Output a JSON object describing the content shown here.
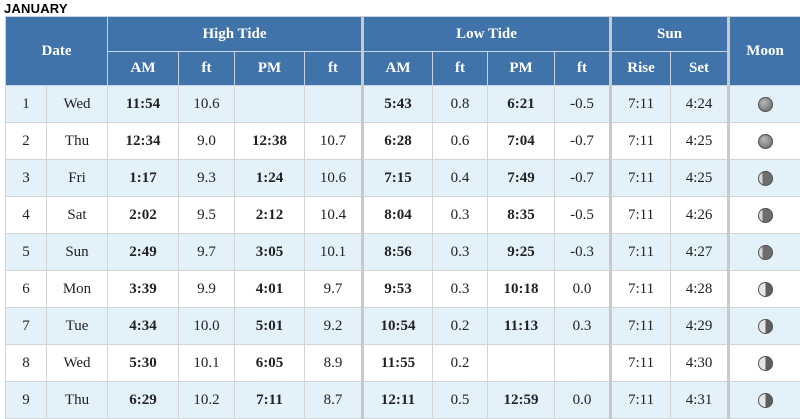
{
  "month": "JANUARY",
  "headers": {
    "date": "Date",
    "high_tide": "High Tide",
    "low_tide": "Low Tide",
    "sun": "Sun",
    "moon": "Moon",
    "am": "AM",
    "ft": "ft",
    "pm": "PM",
    "rise": "Rise",
    "set": "Set"
  },
  "rows": [
    {
      "day": "1",
      "dow": "Wed",
      "high_am": "11:54",
      "high_am_ft": "10.6",
      "high_pm": "",
      "high_pm_ft": "",
      "low_am": "5:43",
      "low_am_ft": "0.8",
      "low_pm": "6:21",
      "low_pm_ft": "-0.5",
      "rise": "7:11",
      "set": "4:24",
      "moon": "full"
    },
    {
      "day": "2",
      "dow": "Thu",
      "high_am": "12:34",
      "high_am_ft": "9.0",
      "high_pm": "12:38",
      "high_pm_ft": "10.7",
      "low_am": "6:28",
      "low_am_ft": "0.6",
      "low_pm": "7:04",
      "low_pm_ft": "-0.7",
      "rise": "7:11",
      "set": "4:25",
      "moon": "full"
    },
    {
      "day": "3",
      "dow": "Fri",
      "high_am": "1:17",
      "high_am_ft": "9.3",
      "high_pm": "1:24",
      "high_pm_ft": "10.6",
      "low_am": "7:15",
      "low_am_ft": "0.4",
      "low_pm": "7:49",
      "low_pm_ft": "-0.7",
      "rise": "7:11",
      "set": "4:25",
      "moon": "gibbous"
    },
    {
      "day": "4",
      "dow": "Sat",
      "high_am": "2:02",
      "high_am_ft": "9.5",
      "high_pm": "2:12",
      "high_pm_ft": "10.4",
      "low_am": "8:04",
      "low_am_ft": "0.3",
      "low_pm": "8:35",
      "low_pm_ft": "-0.5",
      "rise": "7:11",
      "set": "4:26",
      "moon": "gibbous"
    },
    {
      "day": "5",
      "dow": "Sun",
      "high_am": "2:49",
      "high_am_ft": "9.7",
      "high_pm": "3:05",
      "high_pm_ft": "10.1",
      "low_am": "8:56",
      "low_am_ft": "0.3",
      "low_pm": "9:25",
      "low_pm_ft": "-0.3",
      "rise": "7:11",
      "set": "4:27",
      "moon": "gibbous"
    },
    {
      "day": "6",
      "dow": "Mon",
      "high_am": "3:39",
      "high_am_ft": "9.9",
      "high_pm": "4:01",
      "high_pm_ft": "9.7",
      "low_am": "9:53",
      "low_am_ft": "0.3",
      "low_pm": "10:18",
      "low_pm_ft": "0.0",
      "rise": "7:11",
      "set": "4:28",
      "moon": "half"
    },
    {
      "day": "7",
      "dow": "Tue",
      "high_am": "4:34",
      "high_am_ft": "10.0",
      "high_pm": "5:01",
      "high_pm_ft": "9.2",
      "low_am": "10:54",
      "low_am_ft": "0.2",
      "low_pm": "11:13",
      "low_pm_ft": "0.3",
      "rise": "7:11",
      "set": "4:29",
      "moon": "half"
    },
    {
      "day": "8",
      "dow": "Wed",
      "high_am": "5:30",
      "high_am_ft": "10.1",
      "high_pm": "6:05",
      "high_pm_ft": "8.9",
      "low_am": "11:55",
      "low_am_ft": "0.2",
      "low_pm": "",
      "low_pm_ft": "",
      "rise": "7:11",
      "set": "4:30",
      "moon": "half"
    },
    {
      "day": "9",
      "dow": "Thu",
      "high_am": "6:29",
      "high_am_ft": "10.2",
      "high_pm": "7:11",
      "high_pm_ft": "8.7",
      "low_am": "12:11",
      "low_am_ft": "0.5",
      "low_pm": "12:59",
      "low_pm_ft": "0.0",
      "rise": "7:11",
      "set": "4:31",
      "moon": "half"
    }
  ]
}
